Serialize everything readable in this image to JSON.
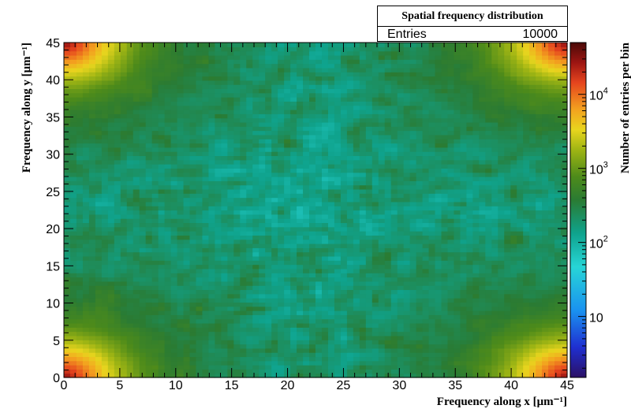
{
  "stats": {
    "title": "Spatial frequency distribution",
    "entries_label": "Entries",
    "entries_value": "10000"
  },
  "chart_data": {
    "type": "heatmap",
    "title": "Spatial frequency distribution",
    "xlabel": "Frequency along x [μm⁻¹]",
    "ylabel": "Frequency along y [μm⁻¹]",
    "zlabel": "Number of entries per bin",
    "xlim": [
      0,
      45
    ],
    "ylim": [
      0,
      45
    ],
    "zlim": [
      1.5,
      50000
    ],
    "zscale": "log",
    "x_ticks": [
      "0",
      "5",
      "10",
      "15",
      "20",
      "25",
      "30",
      "35",
      "40",
      "45"
    ],
    "y_ticks": [
      "0",
      "5",
      "10",
      "15",
      "20",
      "25",
      "30",
      "35",
      "40",
      "45"
    ],
    "z_ticks": [
      {
        "value": 10,
        "label": "10"
      },
      {
        "value": 100,
        "label": "10",
        "exp": "2"
      },
      {
        "value": 1000,
        "label": "10",
        "exp": "3"
      },
      {
        "value": 10000,
        "label": "10",
        "exp": "4"
      }
    ],
    "entries": 10000,
    "corner_peak": 30000,
    "background_level": 130,
    "colormap": [
      "#2b1065",
      "#1f2fd0",
      "#1a92f0",
      "#27d5d6",
      "#0fa38d",
      "#2a7b33",
      "#4e8b1a",
      "#9fb514",
      "#e8d51e",
      "#f3a21f",
      "#e6451e",
      "#9d1512",
      "#4a0a07"
    ],
    "legend": "right"
  }
}
